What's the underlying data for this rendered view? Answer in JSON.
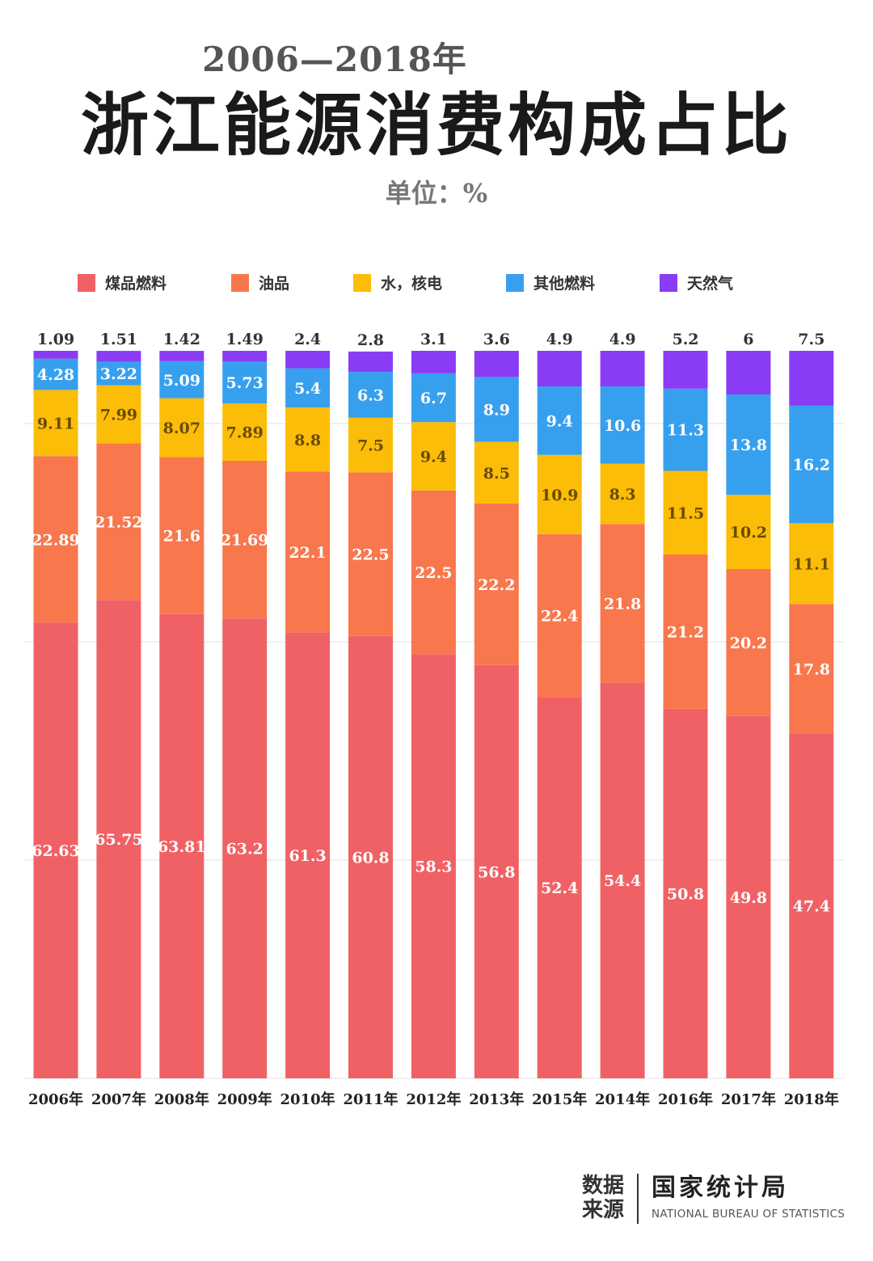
{
  "header": {
    "years": "2006—2018年",
    "title": "浙江能源消费构成占比",
    "unit": "单位：%"
  },
  "colors": {
    "coal": "#f06165",
    "oil": "#f8774d",
    "hydro_nuclear": "#fbbd08",
    "other": "#37a0ee",
    "gas": "#8a3cf5"
  },
  "legend": [
    {
      "name": "煤品燃料",
      "color": "#f06165"
    },
    {
      "name": "油品",
      "color": "#f8774d"
    },
    {
      "name": "水，核电",
      "color": "#fbbd08"
    },
    {
      "name": "其他燃料",
      "color": "#37a0ee"
    },
    {
      "name": "天然气",
      "color": "#8a3cf5"
    }
  ],
  "chart_data": {
    "type": "bar",
    "stacked": true,
    "categories": [
      "2006年",
      "2007年",
      "2008年",
      "2009年",
      "2010年",
      "2011年",
      "2012年",
      "2013年",
      "2015年",
      "2014年",
      "2016年",
      "2017年",
      "2018年"
    ],
    "series": [
      {
        "name": "煤品燃料",
        "color": "#f06165",
        "values": [
          "62.63",
          "65.75",
          "63.81",
          "63.2",
          "61.3",
          "60.8",
          "58.3",
          "56.8",
          "52.4",
          "54.4",
          "50.8",
          "49.8",
          "47.4"
        ]
      },
      {
        "name": "油品",
        "color": "#f8774d",
        "values": [
          "22.89",
          "21.52",
          "21.6",
          "21.69",
          "22.1",
          "22.5",
          "22.5",
          "22.2",
          "22.4",
          "21.8",
          "21.2",
          "20.2",
          "17.8"
        ]
      },
      {
        "name": "水，核电",
        "color": "#fbbd08",
        "values": [
          "9.11",
          "7.99",
          "8.07",
          "7.89",
          "8.8",
          "7.5",
          "9.4",
          "8.5",
          "10.9",
          "8.3",
          "11.5",
          "10.2",
          "11.1"
        ]
      },
      {
        "name": "其他燃料",
        "color": "#37a0ee",
        "values": [
          "4.28",
          "3.22",
          "5.09",
          "5.73",
          "5.4",
          "6.3",
          "6.7",
          "8.9",
          "9.4",
          "10.6",
          "11.3",
          "13.8",
          "16.2"
        ]
      },
      {
        "name": "天然气",
        "color": "#8a3cf5",
        "values": [
          "1.09",
          "1.51",
          "1.42",
          "1.49",
          "2.4",
          "2.8",
          "3.1",
          "3.6",
          "4.9",
          "4.9",
          "5.2",
          "6",
          "7.5"
        ]
      }
    ],
    "ylim": [
      0,
      100
    ],
    "grid": true
  },
  "source": {
    "label_line1": "数据",
    "label_line2": "来源",
    "name": "国家统计局",
    "name_en": "NATIONAL BUREAU OF STATISTICS"
  }
}
